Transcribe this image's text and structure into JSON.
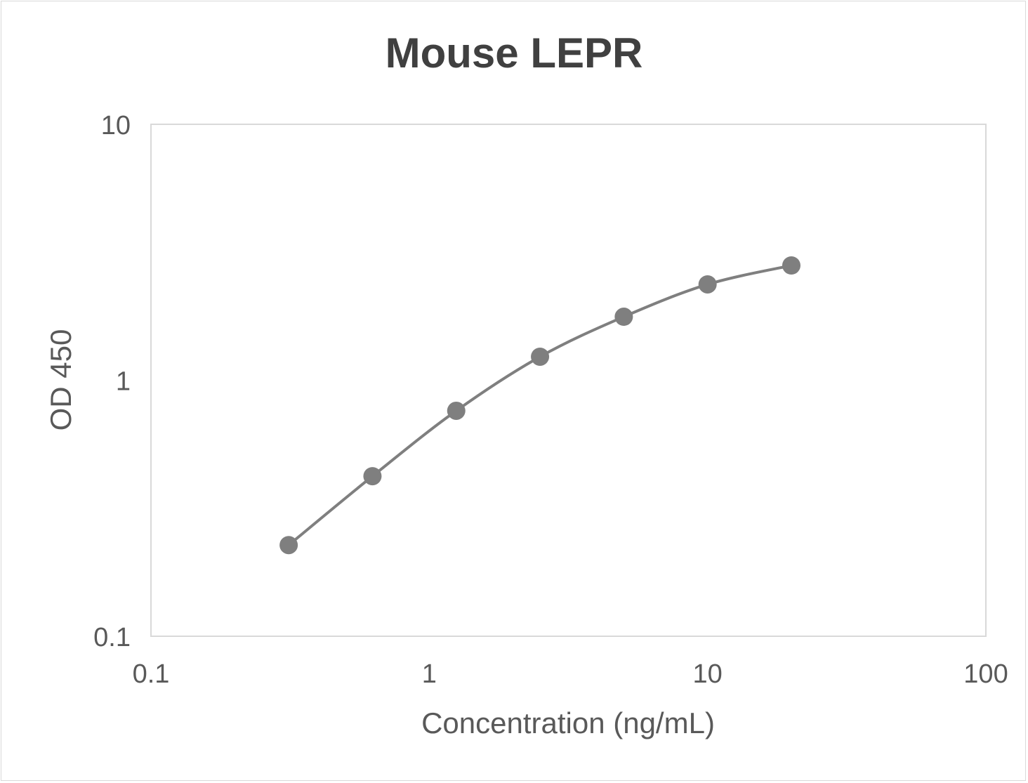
{
  "chart_data": {
    "type": "line",
    "title": "Mouse LEPR",
    "xlabel": "Concentration (ng/mL)",
    "ylabel": "OD 450",
    "x_scale": "log",
    "y_scale": "log",
    "xlim": [
      0.1,
      100
    ],
    "ylim": [
      0.1,
      10
    ],
    "x_ticks": [
      "0.1",
      "1",
      "10",
      "100"
    ],
    "y_ticks": [
      "0.1",
      "1",
      "10"
    ],
    "grid": false,
    "legend": "none",
    "smoothed": true,
    "series": [
      {
        "x": [
          0.3125,
          0.625,
          1.25,
          2.5,
          5,
          10,
          20
        ],
        "y": [
          0.227,
          0.422,
          0.76,
          1.236,
          1.771,
          2.369,
          2.809
        ],
        "color": "#7f7f7f"
      }
    ]
  }
}
